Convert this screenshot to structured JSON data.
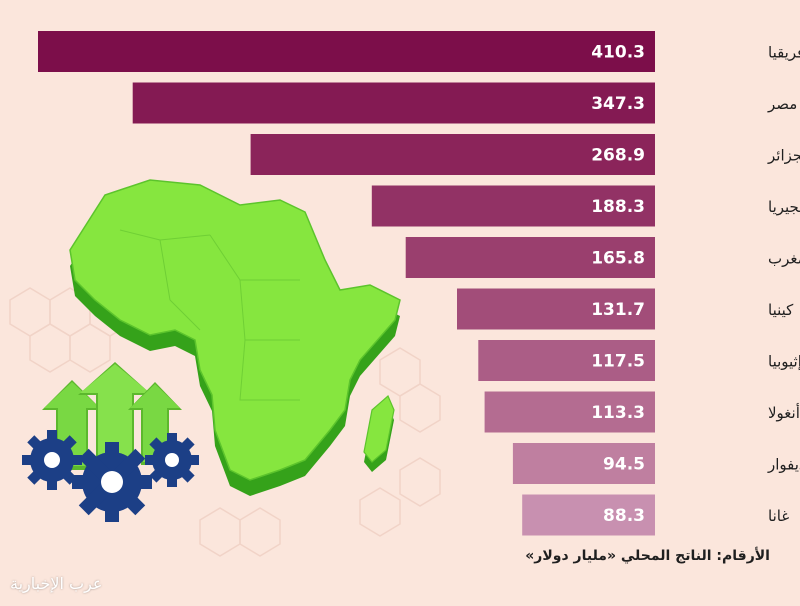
{
  "chart_data": {
    "type": "bar",
    "orientation": "horizontal",
    "categories": [
      "جنوب أفريقيا",
      "مصر",
      "الجزائر",
      "نيجيريا",
      "المغرب",
      "كينيا",
      "إثيوبيا",
      "أنغولا",
      "كوت ديفوار",
      "غانا"
    ],
    "values": [
      410.3,
      347.3,
      268.9,
      188.3,
      165.8,
      131.7,
      117.5,
      113.3,
      94.5,
      88.3
    ],
    "value_labels": [
      "410.3",
      "347.3",
      "268.9",
      "188.3",
      "165.8",
      "131.7",
      "117.5",
      "113.3",
      "94.5",
      "88.3"
    ],
    "title": "",
    "xlabel": "",
    "ylabel": "",
    "grid": false,
    "legend": "none",
    "bar_colors": [
      "#7c0e4a",
      "#841a53",
      "#8b245a",
      "#923265",
      "#9a3f6e",
      "#a24d79",
      "#ab5d86",
      "#b46c91",
      "#bf7fa0",
      "#c890b0"
    ]
  },
  "footnote": "الأرقام: الناتج المحلي «مليار دولار»",
  "watermark": "عرب الإخبارية",
  "colors": {
    "background": "#fbe6dc",
    "map_green": "#7fe03a",
    "map_shadow": "#35a21a",
    "arrow_green": "#79d843",
    "gear_blue": "#1c3f86"
  },
  "icons": [
    "africa-map-icon",
    "growth-arrows-icon",
    "gear-icon"
  ]
}
